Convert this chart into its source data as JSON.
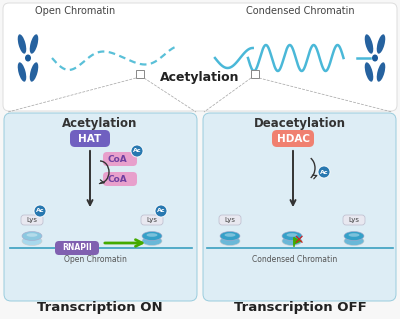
{
  "bg_color": "#f7f7f7",
  "white": "#ffffff",
  "panel_bg": "#ddedf5",
  "hat_color": "#7060c0",
  "hdac_color": "#f08070",
  "coa_color": "#e8a0cc",
  "rnapii_color": "#8060b0",
  "ac_color": "#2878b0",
  "lys_color": "#e8e8f0",
  "arrow_color": "#333333",
  "green_arrow": "#44aa00",
  "red_x": "#cc2222",
  "chrom_dark": "#1a5a9a",
  "chrom_light": "#4ab8d8",
  "dna_open": "#5ac0d8",
  "dna_condensed": "#4ab8d8",
  "top_label_left": "Open Chromatin",
  "top_label_right": "Condensed Chromatin",
  "acetylation_center": "Acetylation",
  "panel_left_title": "Acetylation",
  "panel_right_title": "Deacetylation",
  "bottom_left": "Transcription ON",
  "bottom_right": "Transcription OFF",
  "open_chromatin_label": "Open Chromatin",
  "condensed_chromatin_label": "Condensed Chromatin"
}
